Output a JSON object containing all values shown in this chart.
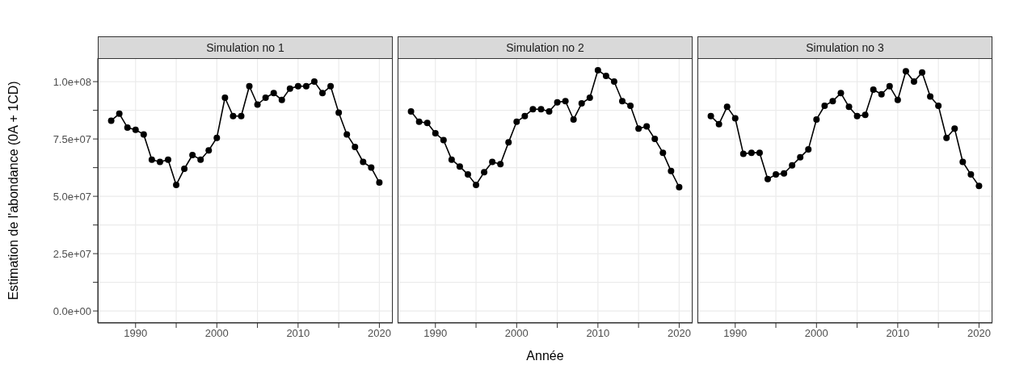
{
  "chart_data": [
    {
      "type": "line",
      "title": "Simulation no 1",
      "ylabel": "Estimation de l'abondance (0A + 1CD)",
      "x": [
        1987,
        1988,
        1989,
        1990,
        1991,
        1992,
        1993,
        1994,
        1995,
        1996,
        1997,
        1998,
        1999,
        2000,
        2001,
        2002,
        2003,
        2004,
        2005,
        2006,
        2007,
        2008,
        2009,
        2010,
        2011,
        2012,
        2013,
        2014,
        2015,
        2016,
        2017,
        2018,
        2019,
        2020
      ],
      "series": [
        {
          "color": "#000000",
          "values": [
            83000000,
            86000000,
            80000000,
            79000000,
            77000000,
            66000000,
            65000000,
            66000000,
            55000000,
            62000000,
            68000000,
            66000000,
            70000000,
            75500000,
            93000000,
            85000000,
            85000000,
            98000000,
            90000000,
            93000000,
            95000000,
            92000000,
            97000000,
            98000000,
            98000000,
            100000000,
            95000000,
            98000000,
            86500000,
            77000000,
            71500000,
            65000000,
            62500000,
            56000000
          ]
        }
      ],
      "xlim": [
        1985.35,
        2021.65
      ],
      "ylim": [
        -5250000,
        110250000
      ],
      "xticks": [
        1990,
        {
          "value": 1995,
          "label": null
        },
        2000,
        {
          "value": 2005,
          "label": null
        },
        2010,
        {
          "value": 2015,
          "label": null
        },
        2020
      ],
      "yticks": [
        {
          "value": 0,
          "label": "0.0e+00"
        },
        {
          "value": 12500000,
          "label": null
        },
        {
          "value": 25000000,
          "label": "2.5e+07"
        },
        {
          "value": 37500000,
          "label": null
        },
        {
          "value": 50000000,
          "label": "5.0e+07"
        },
        {
          "value": 62500000,
          "label": null
        },
        {
          "value": 75000000,
          "label": "7.5e+07"
        },
        {
          "value": 87500000,
          "label": null
        },
        {
          "value": 100000000,
          "label": "1.0e+08"
        }
      ],
      "grid": true,
      "marker": "circle",
      "line_style": "solid",
      "legend": false
    },
    {
      "type": "line",
      "title": "Simulation no 2",
      "xlabel": "Année",
      "x": [
        1987,
        1988,
        1989,
        1990,
        1991,
        1992,
        1993,
        1994,
        1995,
        1996,
        1997,
        1998,
        1999,
        2000,
        2001,
        2002,
        2003,
        2004,
        2005,
        2006,
        2007,
        2008,
        2009,
        2010,
        2011,
        2012,
        2013,
        2014,
        2015,
        2016,
        2017,
        2018,
        2019,
        2020
      ],
      "series": [
        {
          "color": "#000000",
          "values": [
            87000000,
            82500000,
            82000000,
            77500000,
            74500000,
            66000000,
            63000000,
            59500000,
            55000000,
            60500000,
            65000000,
            64000000,
            73500000,
            82500000,
            85000000,
            88000000,
            88000000,
            87000000,
            91000000,
            91500000,
            83500000,
            90500000,
            93000000,
            105000000,
            102500000,
            100000000,
            91500000,
            89500000,
            79500000,
            80500000,
            75000000,
            69000000,
            61000000,
            54000000
          ]
        }
      ],
      "xlim": [
        1985.35,
        2021.65
      ],
      "ylim": [
        -5250000,
        110250000
      ],
      "xticks": [
        1990,
        {
          "value": 1995,
          "label": null
        },
        2000,
        {
          "value": 2005,
          "label": null
        },
        2010,
        {
          "value": 2015,
          "label": null
        },
        2020
      ],
      "tick_labels": "x",
      "grid": true,
      "marker": "circle",
      "line_style": "solid",
      "legend": false
    },
    {
      "type": "line",
      "title": "Simulation no 3",
      "x": [
        1987,
        1988,
        1989,
        1990,
        1991,
        1992,
        1993,
        1994,
        1995,
        1996,
        1997,
        1998,
        1999,
        2000,
        2001,
        2002,
        2003,
        2004,
        2005,
        2006,
        2007,
        2008,
        2009,
        2010,
        2011,
        2012,
        2013,
        2014,
        2015,
        2016,
        2017,
        2018,
        2019,
        2020
      ],
      "series": [
        {
          "color": "#000000",
          "values": [
            85000000,
            81500000,
            89000000,
            84000000,
            68500000,
            69000000,
            69000000,
            57500000,
            59500000,
            60000000,
            63500000,
            67000000,
            70500000,
            83500000,
            89500000,
            91500000,
            95000000,
            89000000,
            85000000,
            85500000,
            96500000,
            94500000,
            98000000,
            92000000,
            104500000,
            100000000,
            104000000,
            93500000,
            89500000,
            75500000,
            79500000,
            65000000,
            59500000,
            54500000
          ]
        }
      ],
      "xlim": [
        1985.35,
        2021.65
      ],
      "ylim": [
        -5250000,
        110250000
      ],
      "xticks": [
        1990,
        {
          "value": 1995,
          "label": null
        },
        2000,
        {
          "value": 2005,
          "label": null
        },
        2010,
        {
          "value": 2015,
          "label": null
        },
        2020
      ],
      "tick_labels": "x",
      "grid": true,
      "marker": "circle",
      "line_style": "solid",
      "legend": false
    }
  ]
}
